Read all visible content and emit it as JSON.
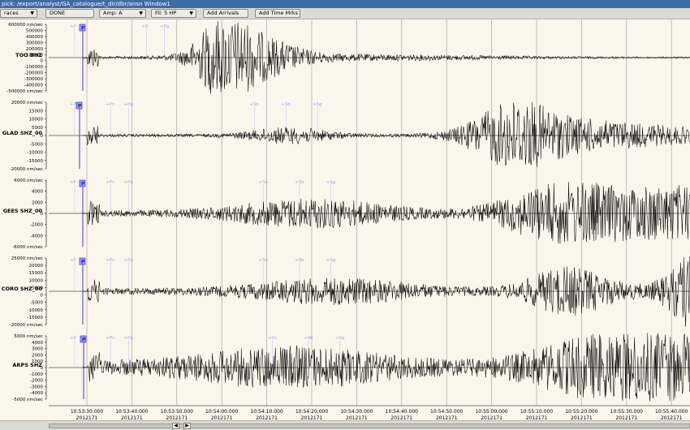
{
  "window": {
    "title": "pick: /export/analyst/GA_catalogue/t_dir/dbr/ansn Window1"
  },
  "toolbar": {
    "traces_label": "races",
    "done_label": "DONE",
    "amp_label": "Amp: A",
    "filter_label": "Fil: 5 HP",
    "add_arrivals_label": "Add Arrivals",
    "add_time_marks_label": "Add Time Mrks"
  },
  "colors": {
    "plot_bg": "#fcf5ec",
    "trace": "#000000",
    "pick": "#3a35d8",
    "phase": "#a5a3f0",
    "title_bar": "#3e6aa5"
  },
  "traces": [
    {
      "station": "TOO BHZ",
      "unit": "nm/sec",
      "yticks": [
        "600000 nm/sec",
        "500000",
        "400000",
        "300000",
        "200000",
        "100000",
        "0",
        "-100000",
        "-200000",
        "-300000",
        "-400000",
        "-500000 nm/sec"
      ],
      "pick_label": "P",
      "phase_labels": [
        "+P",
        "+S",
        "+Pg"
      ],
      "envelope": {
        "onset_s": 10,
        "peaks": [
          {
            "t": 35,
            "a": 0.85,
            "w": 6
          },
          {
            "t": 42,
            "a": 0.55,
            "w": 10
          },
          {
            "t": 60,
            "a": 0.08,
            "w": 40
          }
        ],
        "noise": 0.02
      }
    },
    {
      "station": "GLAD SHZ_00",
      "unit": "nm/sec",
      "yticks": [
        "20000 nm/sec",
        "15000",
        "10000",
        "5000",
        "0",
        "-5000",
        "-10000",
        "-15000",
        "-20000 nm/sec"
      ],
      "pick_label": "P",
      "phase_labels": [
        "+Pn",
        "+Pn",
        "+Pg",
        "+Sn",
        "+Sb",
        "+Sg"
      ],
      "envelope": {
        "onset_s": 7,
        "peaks": [
          {
            "t": 50,
            "a": 0.2,
            "w": 10
          },
          {
            "t": 100,
            "a": 0.75,
            "w": 10
          },
          {
            "t": 115,
            "a": 0.35,
            "w": 20
          },
          {
            "t": 150,
            "a": 0.12,
            "w": 30
          }
        ],
        "noise": 0.04
      }
    },
    {
      "station": "GEES SHZ_00",
      "unit": "nm/sec",
      "yticks": [
        "6000 nm/sec",
        "4000",
        "2000",
        "0",
        "-2000",
        "-4000",
        "-6000 nm/sec"
      ],
      "pick_label": "P",
      "phase_labels": [
        "+P",
        "+Pn",
        "+Pg",
        "+Sn",
        "+Sb",
        "+Sg"
      ],
      "envelope": {
        "onset_s": 10,
        "peaks": [
          {
            "t": 55,
            "a": 0.35,
            "w": 20
          },
          {
            "t": 110,
            "a": 0.7,
            "w": 14
          },
          {
            "t": 135,
            "a": 0.6,
            "w": 18
          },
          {
            "t": 170,
            "a": 0.3,
            "w": 30
          }
        ],
        "noise": 0.08
      }
    },
    {
      "station": "CORO SHZ_00",
      "unit": "nm/sec",
      "yticks": [
        "25000 nm/sec",
        "20000",
        "15000",
        "10000",
        "5000",
        "0",
        "-5000",
        "-10000",
        "-15000",
        "-20000 nm/sec"
      ],
      "pick_label": "P",
      "phase_labels": [
        "+P",
        "+Pn",
        "+Pg",
        "+Sn",
        "+Sb",
        "+Sg"
      ],
      "envelope": {
        "onset_s": 10,
        "peaks": [
          {
            "t": 60,
            "a": 0.3,
            "w": 20
          },
          {
            "t": 112,
            "a": 0.6,
            "w": 10
          },
          {
            "t": 140,
            "a": 0.8,
            "w": 6
          },
          {
            "t": 160,
            "a": 0.35,
            "w": 25
          }
        ],
        "noise": 0.09
      }
    },
    {
      "station": "ARPS SHZ",
      "unit": "nm/sec",
      "yticks": [
        "5000 nm/sec",
        "4000",
        "3000",
        "2000",
        "1000",
        "0",
        "-1000",
        "-2000",
        "-3000",
        "-4000",
        "-5000 nm/sec"
      ],
      "pick_label": "P",
      "phase_labels": [
        "+P",
        "+Pn",
        "+Pg",
        "+Sn",
        "+Sb",
        "+Sg"
      ],
      "envelope": {
        "onset_s": 11,
        "peaks": [
          {
            "t": 50,
            "a": 0.45,
            "w": 25
          },
          {
            "t": 120,
            "a": 0.75,
            "w": 18
          },
          {
            "t": 150,
            "a": 0.65,
            "w": 20
          },
          {
            "t": 190,
            "a": 0.35,
            "w": 40
          }
        ],
        "noise": 0.18
      }
    }
  ],
  "time_axis": {
    "ticks": [
      "10:53:30.000",
      "10:53:40.000",
      "10:53:50.000",
      "10:54:00.000",
      "10:54:10.000",
      "10:54:20.000",
      "10:54:30.000",
      "10:54:40.000",
      "10:54:50.000",
      "10:55:00.000",
      "10:55:10.000",
      "10:55:20.000",
      "10:55:30.000",
      "10:55:40.000"
    ],
    "date": "2012171",
    "start_s": 0,
    "step_s": 10
  }
}
